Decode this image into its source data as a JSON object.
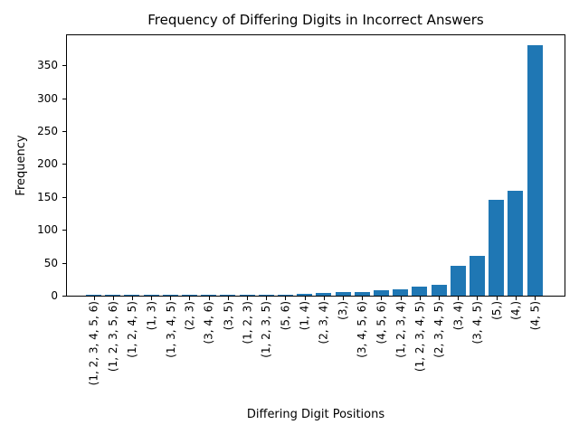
{
  "chart_data": {
    "type": "bar",
    "title": "Frequency of Differing Digits in Incorrect Answers",
    "xlabel": "Differing Digit Positions",
    "ylabel": "Frequency",
    "categories": [
      "(1, 2, 3, 4, 5, 6)",
      "(1, 2, 3, 5, 6)",
      "(1, 2, 4, 5)",
      "(1, 3)",
      "(1, 3, 4, 5)",
      "(2, 3)",
      "(3, 4, 6)",
      "(3, 5)",
      "(1, 2, 3)",
      "(1, 2, 3, 5)",
      "(5, 6)",
      "(1, 4)",
      "(2, 3, 4)",
      "(3,)",
      "(3, 4, 5, 6)",
      "(4, 5, 6)",
      "(1, 2, 3, 4)",
      "(1, 2, 3, 4, 5)",
      "(2, 3, 4, 5)",
      "(3, 4)",
      "(3, 4, 5)",
      "(5,)",
      "(4,)",
      "(4, 5)"
    ],
    "values": [
      1,
      1,
      1,
      1,
      1,
      1,
      1,
      1,
      1,
      2,
      2,
      3,
      4,
      5,
      6,
      8,
      10,
      14,
      16,
      45,
      60,
      145,
      160,
      380
    ],
    "yticks": [
      0,
      50,
      100,
      150,
      200,
      250,
      300,
      350
    ],
    "ylim": [
      0,
      397
    ],
    "bar_color": "#1f77b4",
    "grid": false,
    "legend_position": "none",
    "tick_label_rotation_deg": 90
  }
}
